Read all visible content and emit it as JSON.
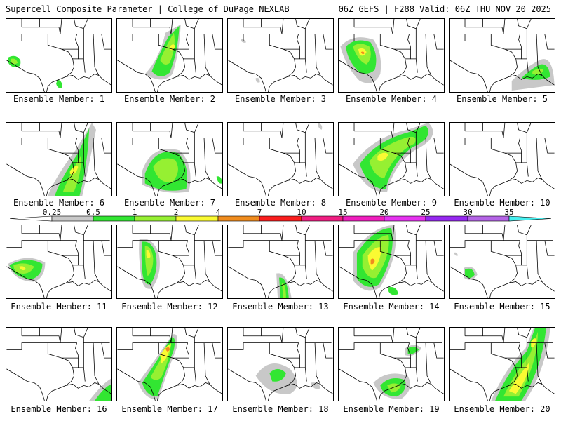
{
  "header": {
    "left": "Supercell Composite Parameter | College of DuPage NEXLAB",
    "right": "06Z GEFS | F288 Valid: 06Z THU NOV 20 2025"
  },
  "member_label_prefix": "Ensemble Member: ",
  "members": [
    "1",
    "2",
    "3",
    "4",
    "5",
    "6",
    "7",
    "8",
    "9",
    "10",
    "11",
    "12",
    "13",
    "14",
    "15",
    "16",
    "17",
    "18",
    "19",
    "20"
  ],
  "legend": {
    "labels": [
      "0.25",
      "0.5",
      "1",
      "2",
      "4",
      "7",
      "10",
      "15",
      "20",
      "25",
      "30",
      "35"
    ],
    "colors": [
      "#c8c8c8",
      "#32e632",
      "#96f032",
      "#fafa32",
      "#f08c1e",
      "#fa1e1e",
      "#f01e82",
      "#f01ebe",
      "#e632f0",
      "#9628f0",
      "#b464e6",
      "#46f0f0"
    ]
  },
  "map_colors": {
    "land_line": "#000000",
    "gray": "#c8c8c8",
    "green": "#32e632",
    "lime": "#96f032",
    "yellow": "#fafa32",
    "orange": "#f08c1e"
  }
}
